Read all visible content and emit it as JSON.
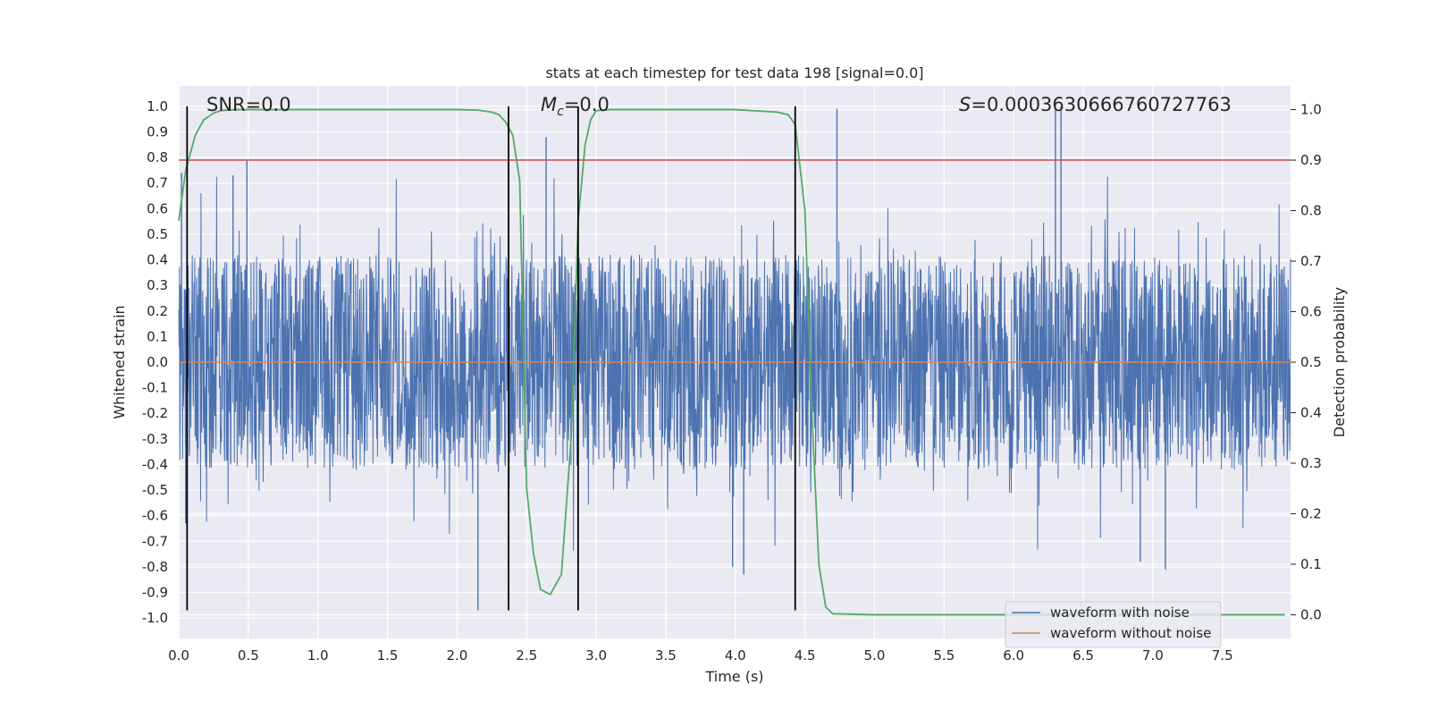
{
  "chart_data": {
    "type": "line",
    "title": "stats at each timestep for test data 198 [signal=0.0]",
    "xlabel": "Time (s)",
    "ylabel_left": "Whitened strain",
    "ylabel_right": "Detection probability",
    "xlim": [
      0.0,
      7.99
    ],
    "ylim_left": [
      -1.08,
      1.08
    ],
    "ylim_right": [
      -0.047,
      1.047
    ],
    "xticks": [
      0.0,
      0.5,
      1.0,
      1.5,
      2.0,
      2.5,
      3.0,
      3.5,
      4.0,
      4.5,
      5.0,
      5.5,
      6.0,
      6.5,
      7.0,
      7.5
    ],
    "xtick_labels": [
      "0.0",
      "0.5",
      "1.0",
      "1.5",
      "2.0",
      "2.5",
      "3.0",
      "3.5",
      "4.0",
      "4.5",
      "5.0",
      "5.5",
      "6.0",
      "6.5",
      "7.0",
      "7.5"
    ],
    "yticks_left": [
      1.0,
      0.9,
      0.8,
      0.7,
      0.6,
      0.5,
      0.4,
      0.3,
      0.2,
      0.1,
      0.0,
      -0.1,
      -0.2,
      -0.3,
      -0.4,
      -0.5,
      -0.6,
      -0.7,
      -0.8,
      -0.9,
      -1.0
    ],
    "ytick_labels_left": [
      "1.0",
      "0.9",
      "0.8",
      "0.7",
      "0.6",
      "0.5",
      "0.4",
      "0.3",
      "0.2",
      "0.1",
      "0.0",
      "-0.1",
      "-0.2",
      "-0.3",
      "-0.4",
      "-0.5",
      "-0.6",
      "-0.7",
      "-0.8",
      "-0.9",
      "-1.0"
    ],
    "yticks_right": [
      1.0,
      0.9,
      0.8,
      0.7,
      0.6,
      0.5,
      0.4,
      0.3,
      0.2,
      0.1,
      0.0
    ],
    "ytick_labels_right": [
      "1.0",
      "0.9",
      "0.8",
      "0.7",
      "0.6",
      "0.5",
      "0.4",
      "0.3",
      "0.2",
      "0.1",
      "0.0"
    ],
    "annotations": {
      "snr": "SNR=0.0",
      "mc_symbol": "M",
      "mc_sub": "c",
      "mc_value": "=0.0",
      "s_symbol": "S",
      "s_value": "=0.0003630666760727763"
    },
    "legend": {
      "position": "lower-right",
      "entries": [
        {
          "label": "waveform with noise",
          "color": "#4c72b0"
        },
        {
          "label": "waveform without noise",
          "color": "#dd8452"
        }
      ]
    },
    "threshold": {
      "axis": "right",
      "value": 0.9,
      "color": "#c44e52"
    },
    "vertical_markers_s": [
      0.06,
      2.37,
      2.87,
      4.43
    ],
    "noise": {
      "color": "#4c72b0",
      "typical_abs_amplitude": 0.42,
      "peaks": [
        {
          "t": 0.02,
          "v": 0.74
        },
        {
          "t": 0.39,
          "v": 0.73
        },
        {
          "t": 0.49,
          "v": 0.79
        },
        {
          "t": 2.64,
          "v": 0.88
        },
        {
          "t": 4.73,
          "v": 0.99
        },
        {
          "t": 6.3,
          "v": 0.99
        },
        {
          "t": 6.34,
          "v": 1.0
        },
        {
          "t": 2.15,
          "v": -0.97
        },
        {
          "t": 2.37,
          "v": 0.84
        },
        {
          "t": 4.06,
          "v": -0.83
        },
        {
          "t": 7.09,
          "v": -0.81
        },
        {
          "t": 3.98,
          "v": -0.8
        },
        {
          "t": 0.05,
          "v": -0.63
        },
        {
          "t": 6.91,
          "v": -0.78
        }
      ]
    },
    "series": [
      {
        "name": "waveform with noise",
        "axis": "left",
        "color": "#4c72b0"
      },
      {
        "name": "waveform without noise",
        "axis": "left",
        "color": "#dd8452",
        "constant_value": 0.0
      },
      {
        "name": "detection probability",
        "axis": "right",
        "color": "#55a868",
        "x": [
          0.0,
          0.05,
          0.12,
          0.18,
          0.25,
          0.3,
          0.4,
          0.5,
          1.0,
          1.5,
          2.0,
          2.15,
          2.25,
          2.3,
          2.35,
          2.4,
          2.45,
          2.5,
          2.55,
          2.6,
          2.67,
          2.75,
          2.82,
          2.87,
          2.92,
          2.96,
          3.0,
          3.1,
          3.5,
          4.0,
          4.3,
          4.38,
          4.43,
          4.5,
          4.55,
          4.6,
          4.65,
          4.7,
          5.0,
          6.0,
          7.0,
          7.95
        ],
        "y": [
          0.78,
          0.88,
          0.95,
          0.98,
          0.993,
          0.998,
          1.0,
          1.0,
          1.0,
          1.0,
          1.0,
          0.999,
          0.995,
          0.99,
          0.975,
          0.95,
          0.86,
          0.25,
          0.12,
          0.05,
          0.04,
          0.08,
          0.35,
          0.78,
          0.93,
          0.98,
          0.998,
          1.0,
          1.0,
          1.0,
          0.995,
          0.99,
          0.97,
          0.8,
          0.4,
          0.1,
          0.015,
          0.002,
          0.0,
          0.0,
          0.0,
          0.0
        ]
      }
    ]
  }
}
